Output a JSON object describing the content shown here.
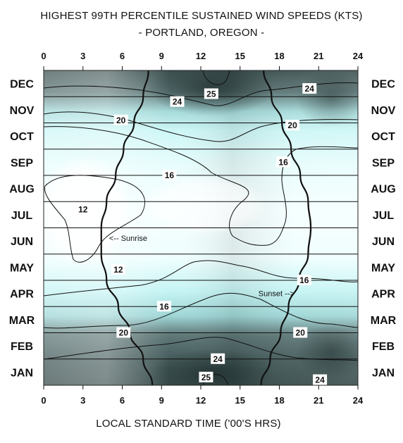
{
  "chart_data": {
    "type": "heatmap",
    "title": "HIGHEST 99TH PERCENTILE SUSTAINED WIND SPEEDS (KTS)",
    "subtitle": "- PORTLAND, OREGON -",
    "xlabel": "LOCAL STANDARD TIME ('00'S HRS)",
    "ylabel": "",
    "x_ticks": [
      "0",
      "3",
      "6",
      "9",
      "12",
      "15",
      "18",
      "21",
      "24"
    ],
    "x_tick_values": [
      0,
      3,
      6,
      9,
      12,
      15,
      18,
      21,
      24
    ],
    "xlim": [
      0,
      24
    ],
    "months_top_to_bottom": [
      "DEC",
      "NOV",
      "OCT",
      "SEP",
      "AUG",
      "JUL",
      "JUN",
      "MAY",
      "APR",
      "MAR",
      "FEB",
      "JAN"
    ],
    "grid": true,
    "colors": {
      "low": "#ffffff",
      "mid": "#b9f2f2",
      "high": "#2b3b3b",
      "contour": "#111111"
    },
    "contour_labels": [
      {
        "value": "12",
        "hour": 3.0,
        "month": 6.7
      },
      {
        "value": "12",
        "hour": 5.7,
        "month": 4.4
      },
      {
        "value": "16",
        "hour": 9.6,
        "month": 8.0
      },
      {
        "value": "16",
        "hour": 18.3,
        "month": 8.5
      },
      {
        "value": "16",
        "hour": 19.9,
        "month": 4.0
      },
      {
        "value": "16",
        "hour": 9.2,
        "month": 3.0
      },
      {
        "value": "20",
        "hour": 5.9,
        "month": 10.1
      },
      {
        "value": "20",
        "hour": 19.0,
        "month": 9.9
      },
      {
        "value": "20",
        "hour": 6.1,
        "month": 2.0
      },
      {
        "value": "20",
        "hour": 19.6,
        "month": 2.0
      },
      {
        "value": "24",
        "hour": 10.2,
        "month": 10.8
      },
      {
        "value": "24",
        "hour": 20.3,
        "month": 11.3
      },
      {
        "value": "24",
        "hour": 13.3,
        "month": 1.0
      },
      {
        "value": "24",
        "hour": 21.1,
        "month": 0.2
      },
      {
        "value": "25",
        "hour": 12.8,
        "month": 11.1
      },
      {
        "value": "25",
        "hour": 12.4,
        "month": 0.3
      }
    ],
    "annotations": [
      {
        "text": "<-- Sunrise",
        "hour": 5.0,
        "month": 5.5
      },
      {
        "text": "Sunset -->",
        "hour": 16.4,
        "month": 3.4
      }
    ],
    "sunrise_hours": [
      8.3,
      7.6,
      6.6,
      5.7,
      4.8,
      4.4,
      4.4,
      4.8,
      5.5,
      6.1,
      6.9,
      7.6,
      8.0
    ],
    "sunset_hours": [
      16.6,
      17.3,
      18.1,
      18.7,
      19.5,
      20.2,
      20.4,
      20.2,
      19.6,
      18.9,
      18.2,
      17.4,
      16.8
    ]
  }
}
